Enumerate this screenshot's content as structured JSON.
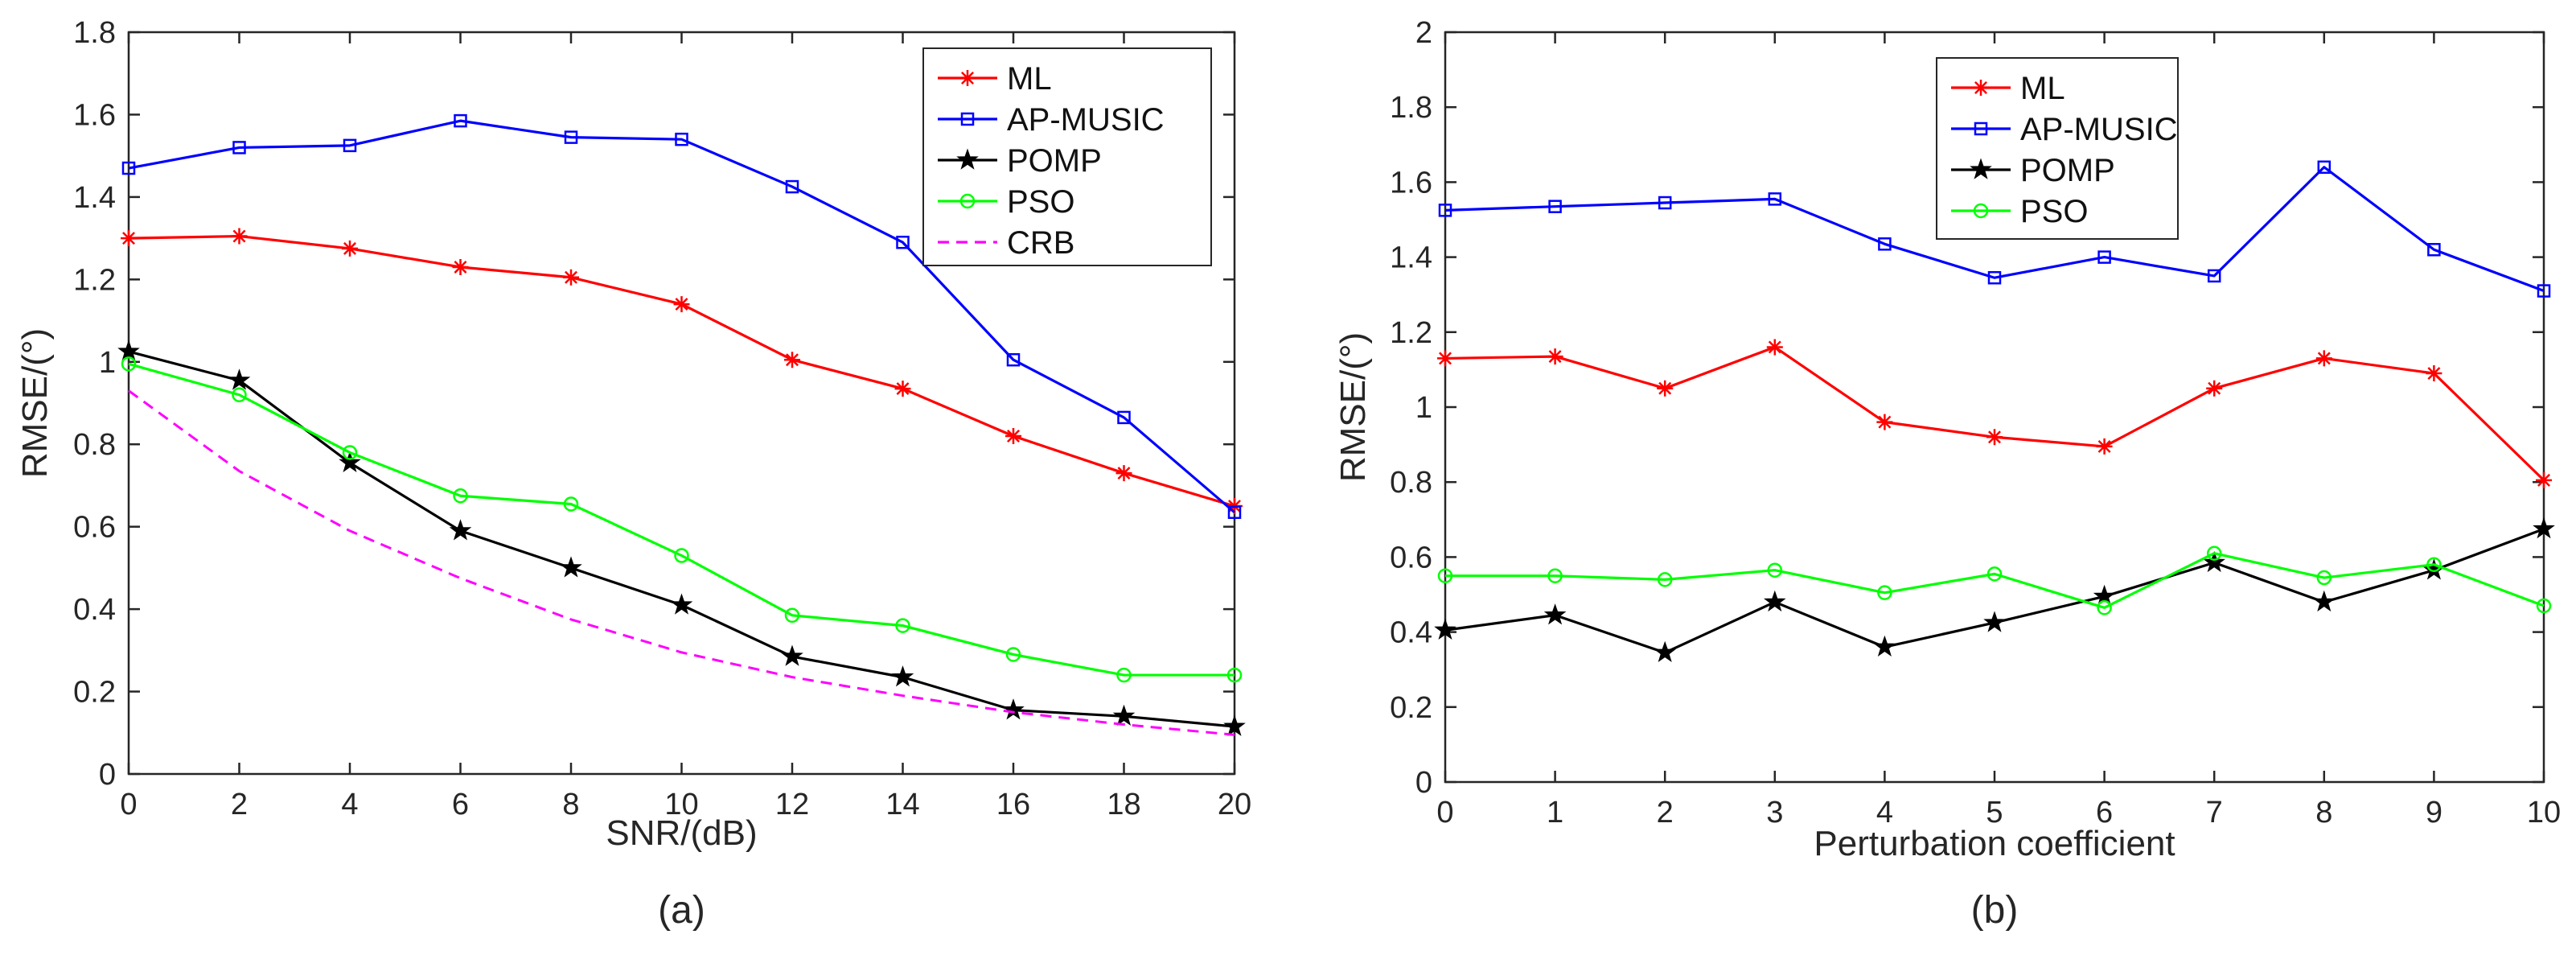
{
  "chart_data": [
    {
      "id": "a",
      "type": "line",
      "caption": "(a)",
      "xlabel": "SNR/(dB)",
      "ylabel": "RMSE/(°)",
      "xlim": [
        0,
        20
      ],
      "ylim": [
        0,
        1.8
      ],
      "xticks": [
        0,
        2,
        4,
        6,
        8,
        10,
        12,
        14,
        16,
        18,
        20
      ],
      "yticks": [
        0,
        0.2,
        0.4,
        0.6,
        0.8,
        1,
        1.2,
        1.4,
        1.6,
        1.8
      ],
      "x": [
        0,
        2,
        4,
        6,
        8,
        10,
        12,
        14,
        16,
        18,
        20
      ],
      "legend_position": "top-right",
      "series": [
        {
          "name": "ML",
          "color": "#ff0000",
          "marker": "asterisk",
          "dash": false,
          "values": [
            1.3,
            1.305,
            1.275,
            1.23,
            1.205,
            1.14,
            1.005,
            0.935,
            0.82,
            0.73,
            0.65
          ]
        },
        {
          "name": "AP-MUSIC",
          "color": "#0000ff",
          "marker": "square",
          "dash": false,
          "values": [
            1.47,
            1.52,
            1.525,
            1.585,
            1.545,
            1.54,
            1.425,
            1.29,
            1.005,
            0.865,
            0.635
          ]
        },
        {
          "name": "POMP",
          "color": "#000000",
          "marker": "star",
          "dash": false,
          "values": [
            1.025,
            0.955,
            0.755,
            0.59,
            0.5,
            0.41,
            0.285,
            0.235,
            0.155,
            0.14,
            0.115
          ]
        },
        {
          "name": "PSO",
          "color": "#00ff00",
          "marker": "circle",
          "dash": false,
          "values": [
            0.995,
            0.92,
            0.78,
            0.675,
            0.655,
            0.53,
            0.385,
            0.36,
            0.29,
            0.24,
            0.24
          ]
        },
        {
          "name": "CRB",
          "color": "#ff00ff",
          "marker": "none",
          "dash": true,
          "values": [
            0.93,
            0.735,
            0.59,
            0.475,
            0.375,
            0.295,
            0.235,
            0.19,
            0.15,
            0.12,
            0.095
          ]
        }
      ]
    },
    {
      "id": "b",
      "type": "line",
      "caption": "(b)",
      "xlabel": "Perturbation coefficient",
      "ylabel": "RMSE/(°)",
      "xlim": [
        0,
        10
      ],
      "ylim": [
        0,
        2
      ],
      "xticks": [
        0,
        1,
        2,
        3,
        4,
        5,
        6,
        7,
        8,
        9,
        10
      ],
      "yticks": [
        0,
        0.2,
        0.4,
        0.6,
        0.8,
        1,
        1.2,
        1.4,
        1.6,
        1.8,
        2
      ],
      "x": [
        0,
        1,
        2,
        3,
        4,
        5,
        6,
        7,
        8,
        9,
        10
      ],
      "legend_position": "top-center",
      "series": [
        {
          "name": "ML",
          "color": "#ff0000",
          "marker": "asterisk",
          "dash": false,
          "values": [
            1.13,
            1.135,
            1.05,
            1.16,
            0.96,
            0.92,
            0.895,
            1.05,
            1.13,
            1.09,
            0.805
          ]
        },
        {
          "name": "AP-MUSIC",
          "color": "#0000ff",
          "marker": "square",
          "dash": false,
          "values": [
            1.525,
            1.535,
            1.545,
            1.555,
            1.435,
            1.345,
            1.4,
            1.35,
            1.64,
            1.42,
            1.31
          ]
        },
        {
          "name": "POMP",
          "color": "#000000",
          "marker": "star",
          "dash": false,
          "values": [
            0.405,
            0.445,
            0.345,
            0.48,
            0.36,
            0.425,
            0.495,
            0.585,
            0.48,
            0.565,
            0.675
          ]
        },
        {
          "name": "PSO",
          "color": "#00ff00",
          "marker": "circle",
          "dash": false,
          "values": [
            0.55,
            0.55,
            0.54,
            0.565,
            0.505,
            0.555,
            0.465,
            0.61,
            0.545,
            0.58,
            0.47
          ]
        }
      ]
    }
  ]
}
